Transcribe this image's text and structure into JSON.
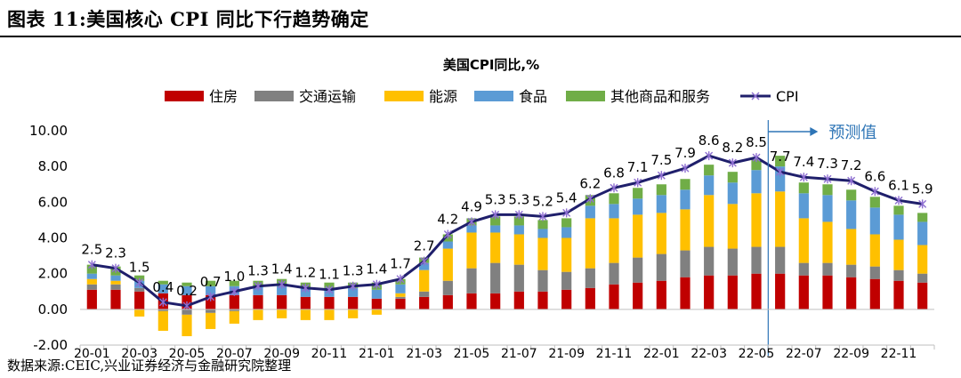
{
  "figure": {
    "title": "图表 11:美国核心 CPI 同比下行趋势确定",
    "source": "数据来源:CEIC,兴业证券经济与金融研究院整理"
  },
  "colors": {
    "住房": "#c00000",
    "交通运输": "#808080",
    "能源": "#ffc000",
    "食品": "#5b9bd5",
    "其他商品和服务": "#70ad47",
    "CPI": "#1f1f6b",
    "forecast_arrow": "#2e75b6"
  },
  "chart_data": {
    "type": "bar",
    "stacked": true,
    "title": "美国CPI同比,%",
    "forecast_label": "预测值",
    "forecast_start": "22-06",
    "ylim": [
      -2,
      10
    ],
    "yticks": [
      "-2.00",
      "0.00",
      "2.00",
      "4.00",
      "6.00",
      "8.00",
      "10.00"
    ],
    "ytick_values": [
      -2,
      0,
      2,
      4,
      6,
      8,
      10
    ],
    "x": [
      "20-01",
      "20-02",
      "20-03",
      "20-04",
      "20-05",
      "20-06",
      "20-07",
      "20-08",
      "20-09",
      "20-10",
      "20-11",
      "20-12",
      "21-01",
      "21-02",
      "21-03",
      "21-04",
      "21-05",
      "21-06",
      "21-07",
      "21-08",
      "21-09",
      "21-10",
      "21-11",
      "21-12",
      "22-01",
      "22-02",
      "22-03",
      "22-04",
      "22-05",
      "22-06",
      "22-07",
      "22-08",
      "22-09",
      "22-10",
      "22-11",
      "22-12"
    ],
    "xtick_labels": [
      "20-01",
      "20-03",
      "20-05",
      "20-07",
      "20-09",
      "20-11",
      "21-01",
      "21-03",
      "21-05",
      "21-07",
      "21-09",
      "21-11",
      "22-01",
      "22-03",
      "22-05",
      "22-07",
      "22-09",
      "22-11"
    ],
    "series": [
      {
        "name": "住房",
        "values": [
          1.1,
          1.1,
          1.0,
          0.9,
          0.8,
          0.8,
          0.8,
          0.8,
          0.8,
          0.7,
          0.7,
          0.7,
          0.6,
          0.6,
          0.7,
          0.8,
          0.9,
          0.9,
          1.0,
          1.0,
          1.1,
          1.2,
          1.4,
          1.5,
          1.6,
          1.8,
          1.9,
          1.9,
          2.0,
          2.0,
          1.9,
          1.9,
          1.8,
          1.7,
          1.6,
          1.5
        ]
      },
      {
        "name": "交通运输",
        "values": [
          0.3,
          0.3,
          0.2,
          -0.1,
          -0.3,
          -0.2,
          -0.1,
          0.0,
          0.0,
          0.0,
          0.0,
          0.0,
          0.0,
          0.1,
          0.3,
          0.8,
          1.4,
          1.7,
          1.5,
          1.2,
          1.0,
          1.1,
          1.2,
          1.4,
          1.5,
          1.5,
          1.6,
          1.5,
          1.5,
          1.5,
          0.7,
          0.7,
          0.7,
          0.7,
          0.6,
          0.5
        ]
      },
      {
        "name": "能源",
        "values": [
          0.3,
          0.2,
          -0.4,
          -1.1,
          -1.2,
          -0.9,
          -0.7,
          -0.6,
          -0.5,
          -0.6,
          -0.6,
          -0.5,
          -0.3,
          0.2,
          1.2,
          1.8,
          2.0,
          1.7,
          1.7,
          1.8,
          1.9,
          2.8,
          2.5,
          2.4,
          2.3,
          2.3,
          2.9,
          2.5,
          3.0,
          3.1,
          2.5,
          2.3,
          2.0,
          1.8,
          1.7,
          1.6
        ]
      },
      {
        "name": "食品",
        "values": [
          0.3,
          0.3,
          0.4,
          0.5,
          0.5,
          0.5,
          0.5,
          0.5,
          0.5,
          0.5,
          0.5,
          0.5,
          0.5,
          0.5,
          0.4,
          0.4,
          0.4,
          0.4,
          0.5,
          0.5,
          0.6,
          0.7,
          0.8,
          0.9,
          1.0,
          1.1,
          1.1,
          1.2,
          1.3,
          1.4,
          1.4,
          1.5,
          1.6,
          1.5,
          1.4,
          1.3
        ]
      },
      {
        "name": "其他商品和服务",
        "values": [
          0.5,
          0.5,
          0.3,
          0.2,
          0.2,
          0.3,
          0.3,
          0.3,
          0.4,
          0.3,
          0.3,
          0.3,
          0.4,
          0.3,
          0.3,
          0.4,
          0.4,
          0.5,
          0.5,
          0.5,
          0.5,
          0.6,
          0.6,
          0.6,
          0.6,
          0.6,
          0.6,
          0.6,
          0.6,
          0.6,
          0.6,
          0.6,
          0.6,
          0.6,
          0.5,
          0.5
        ]
      }
    ],
    "line": {
      "name": "CPI",
      "values": [
        2.5,
        2.3,
        1.5,
        0.4,
        0.2,
        0.7,
        1.0,
        1.3,
        1.4,
        1.2,
        1.1,
        1.3,
        1.4,
        1.7,
        2.7,
        4.2,
        4.9,
        5.3,
        5.3,
        5.2,
        5.4,
        6.2,
        6.8,
        7.1,
        7.5,
        7.9,
        8.6,
        8.2,
        8.5,
        7.7,
        7.4,
        7.3,
        7.2,
        6.6,
        6.1,
        5.9
      ],
      "labels": [
        "2.5",
        "2.3",
        "1.5",
        "0.4",
        "0.2",
        "0.7",
        "1.0",
        "1.3",
        "1.4",
        "1.2",
        "1.1",
        "1.3",
        "1.4",
        "1.7",
        "2.7",
        "4.2",
        "4.9",
        "5.3",
        "5.3",
        "5.2",
        "5.4",
        "6.2",
        "6.8",
        "7.1",
        "7.5",
        "7.9",
        "8.6",
        "8.2",
        "8.5",
        "7.7",
        "7.4",
        "7.3",
        "7.2",
        "6.6",
        "6.1",
        "5.9"
      ]
    },
    "legend": [
      "住房",
      "交通运输",
      "能源",
      "食品",
      "其他商品和服务",
      "CPI"
    ]
  }
}
